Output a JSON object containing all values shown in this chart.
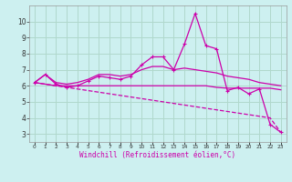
{
  "xlabel": "Windchill (Refroidissement éolien,°C)",
  "background_color": "#cdf0f0",
  "grid_color": "#b0d8cc",
  "line_color": "#cc00aa",
  "x_hours": [
    0,
    1,
    2,
    3,
    4,
    5,
    6,
    7,
    8,
    9,
    10,
    11,
    12,
    13,
    14,
    15,
    16,
    17,
    18,
    19,
    20,
    21,
    22,
    23
  ],
  "series_main": [
    6.2,
    6.7,
    6.1,
    5.9,
    6.0,
    6.3,
    6.6,
    6.5,
    6.4,
    6.6,
    7.3,
    7.8,
    7.8,
    7.0,
    8.6,
    10.5,
    8.5,
    8.3,
    5.7,
    5.9,
    5.5,
    5.8,
    3.6,
    3.1
  ],
  "series_upper": [
    6.2,
    6.7,
    6.2,
    6.1,
    6.2,
    6.4,
    6.7,
    6.7,
    6.6,
    6.7,
    7.0,
    7.2,
    7.2,
    7.0,
    7.1,
    7.0,
    6.9,
    6.8,
    6.6,
    6.5,
    6.4,
    6.2,
    6.1,
    6.0
  ],
  "series_lower": [
    6.2,
    6.1,
    6.0,
    5.9,
    5.8,
    5.7,
    5.6,
    5.5,
    5.4,
    5.3,
    5.2,
    5.1,
    5.0,
    4.9,
    4.8,
    4.7,
    4.6,
    4.5,
    4.4,
    4.3,
    4.2,
    4.1,
    4.0,
    3.1
  ],
  "series_flat": [
    6.2,
    6.1,
    6.0,
    6.0,
    6.0,
    6.0,
    6.0,
    6.0,
    6.0,
    6.0,
    6.0,
    6.0,
    6.0,
    6.0,
    6.0,
    6.0,
    6.0,
    5.9,
    5.85,
    5.85,
    5.85,
    5.85,
    5.85,
    5.75
  ],
  "ylim": [
    2.5,
    11.0
  ],
  "yticks": [
    3,
    4,
    5,
    6,
    7,
    8,
    9,
    10
  ],
  "xlim": [
    -0.5,
    23.5
  ]
}
